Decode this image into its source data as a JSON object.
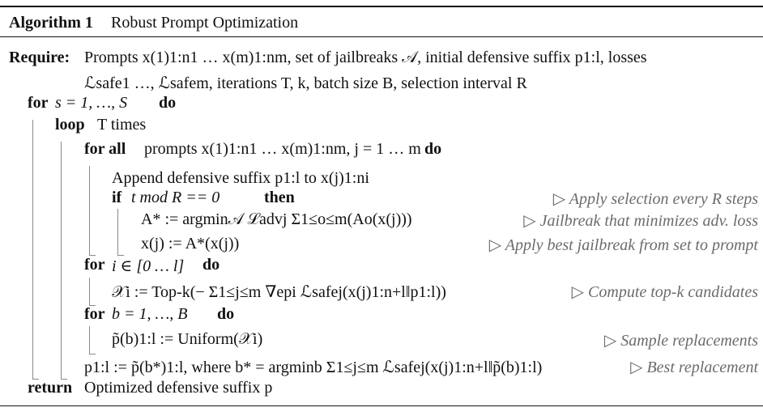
{
  "header": {
    "label": "Algorithm 1",
    "title": "Robust Prompt Optimization"
  },
  "lines": [
    {
      "id": "req1",
      "kw": "Require:",
      "text": "Prompts x(1)1:n1 … x(m)1:nm, set of jailbreaks 𝒜, initial defensive suffix p1:l, losses"
    },
    {
      "id": "req2",
      "kw": "",
      "text": "ℒsafe1 …, ℒsafem, iterations T, k, batch size B, selection interval R"
    },
    {
      "id": "for_s",
      "kw": "for",
      "text": "s = 1, …, S",
      "kw2": "do"
    },
    {
      "id": "loop",
      "kw": "loop",
      "text": "T times",
      "kw2": ""
    },
    {
      "id": "forall",
      "kw": "for all",
      "text": "prompts x(1)1:n1 … x(m)1:nm, j = 1 … m",
      "kw2": "do"
    },
    {
      "id": "append",
      "kw": "",
      "text": "Append defensive suffix p1:l to x(j)1:ni"
    },
    {
      "id": "if",
      "kw": "if",
      "text": "t  mod R == 0",
      "kw2": "then",
      "comment": "▷ Apply selection every R steps"
    },
    {
      "id": "astar",
      "kw": "",
      "text": "A* := argmin𝒜 ℒadvj Σ1≤o≤m(Ao(x(j)))",
      "comment": "▷ Jailbreak that minimizes adv. loss"
    },
    {
      "id": "xj",
      "kw": "",
      "text": "x(j) := A*(x(j))",
      "comment": "▷ Apply best jailbreak from set to prompt"
    },
    {
      "id": "for_i",
      "kw": "for",
      "text": "i ∈ [0 … l]",
      "kw2": "do"
    },
    {
      "id": "xi",
      "kw": "",
      "text": "𝒳i := Top-k(− Σ1≤j≤m ∇epi ℒsafej(x(j)1:n+l‖p1:l))",
      "comment": "▷ Compute top-k candidates"
    },
    {
      "id": "for_b",
      "kw": "for",
      "text": "b = 1, …, B",
      "kw2": "do"
    },
    {
      "id": "sample",
      "kw": "",
      "text": "p̃(b)1:l := Uniform(𝒳i)",
      "comment": "▷ Sample replacements"
    },
    {
      "id": "best",
      "kw": "",
      "text": "p1:l := p̃(b*)1:l, where b* = argminb Σ1≤j≤m ℒsafej(x(j)1:n+l‖p̃(b)1:l)",
      "comment": "▷ Best replacement"
    },
    {
      "id": "ret",
      "kw": "return",
      "text": "Optimized defensive suffix p",
      "kw2": ""
    }
  ]
}
